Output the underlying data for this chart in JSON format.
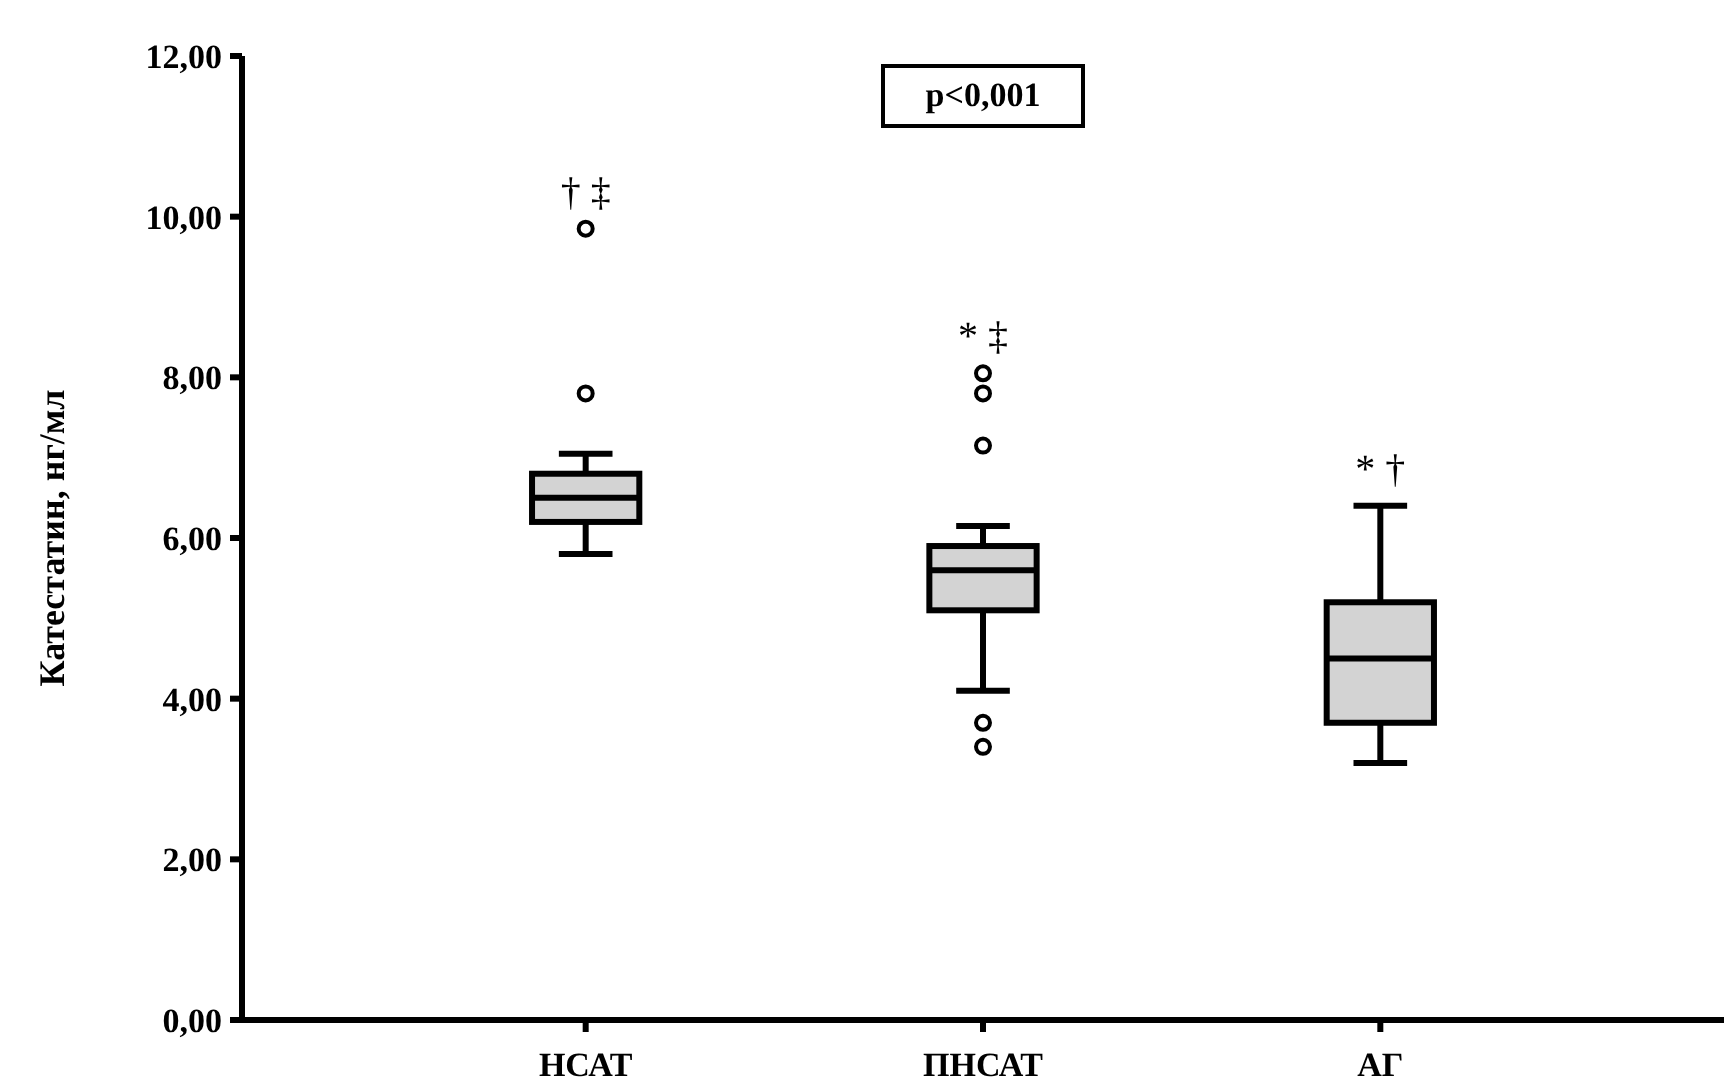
{
  "chart_data": {
    "type": "box",
    "ylabel": "Катестатин, нг/мл",
    "categories": [
      "НСАТ",
      "ПНСАТ",
      "АГ"
    ],
    "boxes": [
      {
        "low": 5.8,
        "q1": 6.2,
        "median": 6.5,
        "q3": 6.8,
        "high": 7.05,
        "outliers": [
          7.8,
          9.85
        ]
      },
      {
        "low": 4.1,
        "q1": 5.1,
        "median": 5.6,
        "q3": 5.9,
        "high": 6.15,
        "outliers": [
          3.4,
          3.7,
          7.15,
          7.8,
          8.05
        ]
      },
      {
        "low": 3.2,
        "q1": 3.7,
        "median": 4.5,
        "q3": 5.2,
        "high": 6.4
      }
    ],
    "color": "#d3d3d3",
    "ylim": [
      0,
      12
    ],
    "yticks": [
      {
        "value": 0,
        "label": "0,00"
      },
      {
        "value": 2,
        "label": "2,00"
      },
      {
        "value": 4,
        "label": "4,00"
      },
      {
        "value": 6,
        "label": "6,00"
      },
      {
        "value": 8,
        "label": "8,00"
      },
      {
        "value": 10,
        "label": "10,00"
      },
      {
        "value": 12,
        "label": "12,00"
      }
    ],
    "grid": false,
    "annotations": [
      "p<0,001",
      "† ‡",
      "* ‡",
      "* †"
    ]
  }
}
